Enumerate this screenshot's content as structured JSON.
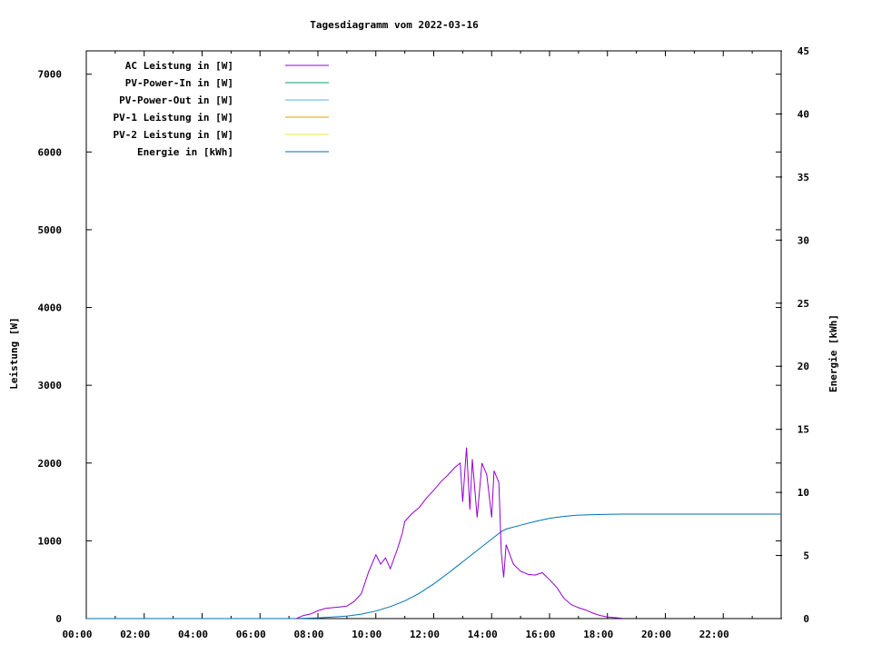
{
  "chart_data": {
    "type": "line",
    "title": "Tagesdiagramm vom 2022-03-16",
    "ylabel": "Leistung [W]",
    "y2label": "Energie [kWh]",
    "ylim": [
      0,
      7300
    ],
    "y2lim": [
      0,
      45
    ],
    "xlim_hours": [
      0,
      24
    ],
    "x_ticks": [
      "00:00",
      "02:00",
      "04:00",
      "06:00",
      "08:00",
      "10:00",
      "12:00",
      "14:00",
      "16:00",
      "18:00",
      "20:00",
      "22:00"
    ],
    "y_ticks": [
      0,
      1000,
      2000,
      3000,
      4000,
      5000,
      6000,
      7000
    ],
    "y2_ticks": [
      0,
      5,
      10,
      15,
      20,
      25,
      30,
      35,
      40,
      45
    ],
    "grid": false,
    "legend_position": "top-left",
    "series": [
      {
        "name": "AC Leistung in [W]",
        "axis": "left",
        "color": "#9400d3",
        "points": [
          [
            "07:15",
            0
          ],
          [
            "07:30",
            40
          ],
          [
            "07:45",
            60
          ],
          [
            "08:00",
            100
          ],
          [
            "08:15",
            130
          ],
          [
            "08:30",
            140
          ],
          [
            "08:45",
            150
          ],
          [
            "09:00",
            160
          ],
          [
            "09:15",
            220
          ],
          [
            "09:30",
            320
          ],
          [
            "09:45",
            600
          ],
          [
            "10:00",
            820
          ],
          [
            "10:10",
            700
          ],
          [
            "10:20",
            780
          ],
          [
            "10:30",
            640
          ],
          [
            "10:45",
            900
          ],
          [
            "10:55",
            1100
          ],
          [
            "11:00",
            1250
          ],
          [
            "11:15",
            1350
          ],
          [
            "11:30",
            1430
          ],
          [
            "11:45",
            1550
          ],
          [
            "12:00",
            1650
          ],
          [
            "12:15",
            1760
          ],
          [
            "12:30",
            1850
          ],
          [
            "12:45",
            1950
          ],
          [
            "12:55",
            2000
          ],
          [
            "13:00",
            1500
          ],
          [
            "13:08",
            2200
          ],
          [
            "13:15",
            1400
          ],
          [
            "13:20",
            2050
          ],
          [
            "13:30",
            1300
          ],
          [
            "13:40",
            2000
          ],
          [
            "13:50",
            1850
          ],
          [
            "14:00",
            1300
          ],
          [
            "14:05",
            1900
          ],
          [
            "14:15",
            1750
          ],
          [
            "14:20",
            850
          ],
          [
            "14:25",
            530
          ],
          [
            "14:30",
            950
          ],
          [
            "14:45",
            700
          ],
          [
            "15:00",
            610
          ],
          [
            "15:15",
            570
          ],
          [
            "15:30",
            560
          ],
          [
            "15:45",
            590
          ],
          [
            "16:00",
            500
          ],
          [
            "16:15",
            400
          ],
          [
            "16:30",
            260
          ],
          [
            "16:45",
            180
          ],
          [
            "17:00",
            140
          ],
          [
            "17:15",
            110
          ],
          [
            "17:30",
            70
          ],
          [
            "17:45",
            40
          ],
          [
            "18:00",
            20
          ],
          [
            "18:30",
            5
          ]
        ]
      },
      {
        "name": "PV-Power-In in [W]",
        "axis": "left",
        "color": "#009e73",
        "points": []
      },
      {
        "name": "PV-Power-Out in [W]",
        "axis": "left",
        "color": "#56b4e9",
        "points": []
      },
      {
        "name": "PV-1 Leistung in [W]",
        "axis": "left",
        "color": "#e69f00",
        "points": []
      },
      {
        "name": "PV-2 Leistung in [W]",
        "axis": "left",
        "color": "#f0e442",
        "points": []
      },
      {
        "name": "Energie in [kWh]",
        "axis": "right",
        "color": "#0072b2",
        "points": [
          [
            "00:00",
            0
          ],
          [
            "07:15",
            0
          ],
          [
            "08:00",
            0.05
          ],
          [
            "09:00",
            0.2
          ],
          [
            "09:30",
            0.35
          ],
          [
            "10:00",
            0.6
          ],
          [
            "10:30",
            0.95
          ],
          [
            "11:00",
            1.4
          ],
          [
            "11:30",
            2.0
          ],
          [
            "12:00",
            2.75
          ],
          [
            "12:30",
            3.6
          ],
          [
            "13:00",
            4.5
          ],
          [
            "13:30",
            5.4
          ],
          [
            "14:00",
            6.3
          ],
          [
            "14:20",
            6.9
          ],
          [
            "14:30",
            7.1
          ],
          [
            "15:00",
            7.4
          ],
          [
            "15:30",
            7.7
          ],
          [
            "16:00",
            7.95
          ],
          [
            "16:30",
            8.1
          ],
          [
            "17:00",
            8.2
          ],
          [
            "17:30",
            8.24
          ],
          [
            "18:00",
            8.26
          ],
          [
            "18:30",
            8.28
          ],
          [
            "20:00",
            8.28
          ],
          [
            "24:00",
            8.28
          ]
        ]
      }
    ]
  }
}
